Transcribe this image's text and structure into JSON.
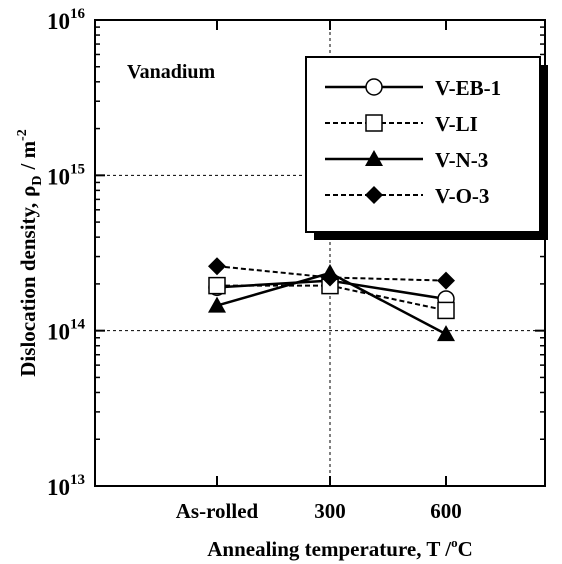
{
  "chart_data": {
    "type": "line",
    "annotation": "Vanadium",
    "xlabel": {
      "main": "Annealing temperature, T /",
      "sup": "o",
      "unit": "C"
    },
    "ylabel": {
      "main": "Dislocation density,",
      "symbol": "ρ",
      "sub": "D",
      "unit": "/ m",
      "sup": "-2"
    },
    "categories": [
      "As-rolled",
      "300",
      "600"
    ],
    "y_scale": "log",
    "ylim": [
      10000000000000.0,
      1e+16
    ],
    "y_ticks": [
      {
        "base": "10",
        "exp": "13",
        "value": 10000000000000.0
      },
      {
        "base": "10",
        "exp": "14",
        "value": 100000000000000.0
      },
      {
        "base": "10",
        "exp": "15",
        "value": 1000000000000000.0
      },
      {
        "base": "10",
        "exp": "16",
        "value": 1e+16
      }
    ],
    "grid": true,
    "legend_position": "top-right",
    "series": [
      {
        "name": "V-EB-1",
        "marker": "circle-open",
        "line": "solid",
        "values": [
          190000000000000.0,
          210000000000000.0,
          160000000000000.0
        ]
      },
      {
        "name": "V-LI",
        "marker": "square-open",
        "line": "dashed",
        "values": [
          195000000000000.0,
          195000000000000.0,
          135000000000000.0
        ]
      },
      {
        "name": "V-N-3",
        "marker": "triangle-filled",
        "line": "solid",
        "values": [
          145000000000000.0,
          235000000000000.0,
          95000000000000.0
        ]
      },
      {
        "name": "V-O-3",
        "marker": "diamond-filled",
        "line": "dashed",
        "values": [
          260000000000000.0,
          220000000000000.0,
          210000000000000.0
        ]
      }
    ]
  }
}
